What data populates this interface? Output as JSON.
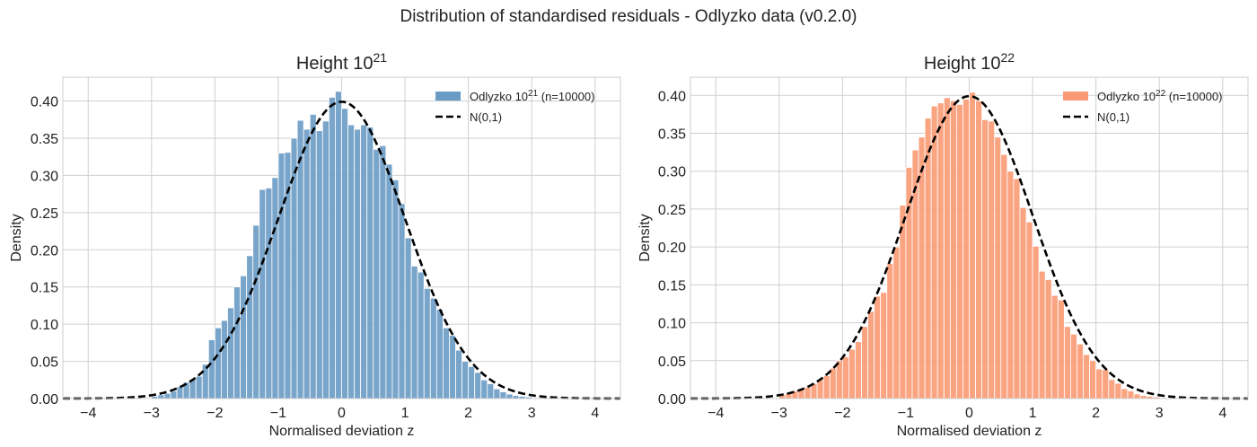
{
  "suptitle": "Distribution of standardised residuals - Odlyzko data (v0.2.0)",
  "chart_data": [
    {
      "type": "bar",
      "title_base": "Height 10",
      "title_exp": "21",
      "xlabel": "Normalised deviation z",
      "ylabel": "Density",
      "xlim": [
        -4.4,
        4.4
      ],
      "ylim": [
        0,
        0.432
      ],
      "xticks": [
        -4,
        -3,
        -2,
        -1,
        0,
        1,
        2,
        3,
        4
      ],
      "xtick_labels": [
        "−4",
        "−3",
        "−2",
        "−1",
        "0",
        "1",
        "2",
        "3",
        "4"
      ],
      "yticks": [
        0,
        0.05,
        0.1,
        0.15,
        0.2,
        0.25,
        0.3,
        0.35,
        0.4
      ],
      "ytick_labels": [
        "0.00",
        "0.05",
        "0.10",
        "0.15",
        "0.20",
        "0.25",
        "0.30",
        "0.35",
        "0.40"
      ],
      "grid": true,
      "legend_position": "upper-right",
      "bar_color": "#6a9bc5",
      "bin_width": 0.1,
      "bins_start": [
        -3.0,
        -2.9,
        -2.8,
        -2.7,
        -2.6,
        -2.5,
        -2.4,
        -2.3,
        -2.2,
        -2.1,
        -2.0,
        -1.9,
        -1.8,
        -1.7,
        -1.6,
        -1.5,
        -1.4,
        -1.3,
        -1.2,
        -1.1,
        -1.0,
        -0.9,
        -0.8,
        -0.7,
        -0.6,
        -0.5,
        -0.4,
        -0.3,
        -0.2,
        -0.1,
        0.0,
        0.1,
        0.2,
        0.3,
        0.4,
        0.5,
        0.6,
        0.7,
        0.8,
        0.9,
        1.0,
        1.1,
        1.2,
        1.3,
        1.4,
        1.5,
        1.6,
        1.7,
        1.8,
        1.9,
        2.0,
        2.1,
        2.2,
        2.3,
        2.4,
        2.5,
        2.6,
        2.7,
        2.8,
        2.9
      ],
      "values": [
        0.003,
        0.005,
        0.007,
        0.01,
        0.016,
        0.022,
        0.026,
        0.03,
        0.046,
        0.079,
        0.095,
        0.105,
        0.122,
        0.15,
        0.165,
        0.192,
        0.233,
        0.281,
        0.283,
        0.297,
        0.33,
        0.331,
        0.35,
        0.374,
        0.362,
        0.382,
        0.36,
        0.373,
        0.405,
        0.413,
        0.39,
        0.368,
        0.362,
        0.368,
        0.365,
        0.335,
        0.34,
        0.315,
        0.294,
        0.262,
        0.216,
        0.178,
        0.17,
        0.148,
        0.135,
        0.12,
        0.095,
        0.085,
        0.065,
        0.05,
        0.043,
        0.035,
        0.025,
        0.02,
        0.013,
        0.009,
        0.006,
        0.004,
        0.003,
        0.002
      ],
      "series": [
        {
          "name": "Odlyzko 10",
          "name_exp": "21",
          "name_suffix": " (n=10000)",
          "type": "histogram",
          "color": "#6a9bc5"
        },
        {
          "name": "N(0,1)",
          "type": "line",
          "style": "dashed",
          "color": "#000000",
          "function": "standard normal pdf"
        }
      ]
    },
    {
      "type": "bar",
      "title_base": "Height 10",
      "title_exp": "22",
      "xlabel": "Normalised deviation z",
      "ylabel": "Density",
      "xlim": [
        -4.4,
        4.4
      ],
      "ylim": [
        0,
        0.424
      ],
      "xticks": [
        -4,
        -3,
        -2,
        -1,
        0,
        1,
        2,
        3,
        4
      ],
      "xtick_labels": [
        "−4",
        "−3",
        "−2",
        "−1",
        "0",
        "1",
        "2",
        "3",
        "4"
      ],
      "yticks": [
        0,
        0.05,
        0.1,
        0.15,
        0.2,
        0.25,
        0.3,
        0.35,
        0.4
      ],
      "ytick_labels": [
        "0.00",
        "0.05",
        "0.10",
        "0.15",
        "0.20",
        "0.25",
        "0.30",
        "0.35",
        "0.40"
      ],
      "grid": true,
      "legend_position": "upper-right",
      "bar_color": "#f99a74",
      "bin_width": 0.1,
      "bins_start": [
        -3.0,
        -2.9,
        -2.8,
        -2.7,
        -2.6,
        -2.5,
        -2.4,
        -2.3,
        -2.2,
        -2.1,
        -2.0,
        -1.9,
        -1.8,
        -1.7,
        -1.6,
        -1.5,
        -1.4,
        -1.3,
        -1.2,
        -1.1,
        -1.0,
        -0.9,
        -0.8,
        -0.7,
        -0.6,
        -0.5,
        -0.4,
        -0.3,
        -0.2,
        -0.1,
        0.0,
        0.1,
        0.2,
        0.3,
        0.4,
        0.5,
        0.6,
        0.7,
        0.8,
        0.9,
        1.0,
        1.1,
        1.2,
        1.3,
        1.4,
        1.5,
        1.6,
        1.7,
        1.8,
        1.9,
        2.0,
        2.1,
        2.2,
        2.3,
        2.4,
        2.5,
        2.6,
        2.7,
        2.8,
        2.9
      ],
      "values": [
        0.005,
        0.007,
        0.01,
        0.012,
        0.015,
        0.02,
        0.025,
        0.03,
        0.04,
        0.05,
        0.055,
        0.065,
        0.075,
        0.095,
        0.115,
        0.135,
        0.14,
        0.178,
        0.2,
        0.255,
        0.305,
        0.328,
        0.345,
        0.37,
        0.386,
        0.39,
        0.397,
        0.393,
        0.388,
        0.395,
        0.404,
        0.393,
        0.368,
        0.366,
        0.345,
        0.322,
        0.3,
        0.29,
        0.252,
        0.233,
        0.201,
        0.168,
        0.157,
        0.136,
        0.13,
        0.095,
        0.085,
        0.072,
        0.058,
        0.05,
        0.039,
        0.038,
        0.025,
        0.02,
        0.013,
        0.01,
        0.006,
        0.004,
        0.003,
        0.002
      ],
      "series": [
        {
          "name": "Odlyzko 10",
          "name_exp": "22",
          "name_suffix": " (n=10000)",
          "type": "histogram",
          "color": "#f99a74"
        },
        {
          "name": "N(0,1)",
          "type": "line",
          "style": "dashed",
          "color": "#000000",
          "function": "standard normal pdf"
        }
      ]
    }
  ]
}
